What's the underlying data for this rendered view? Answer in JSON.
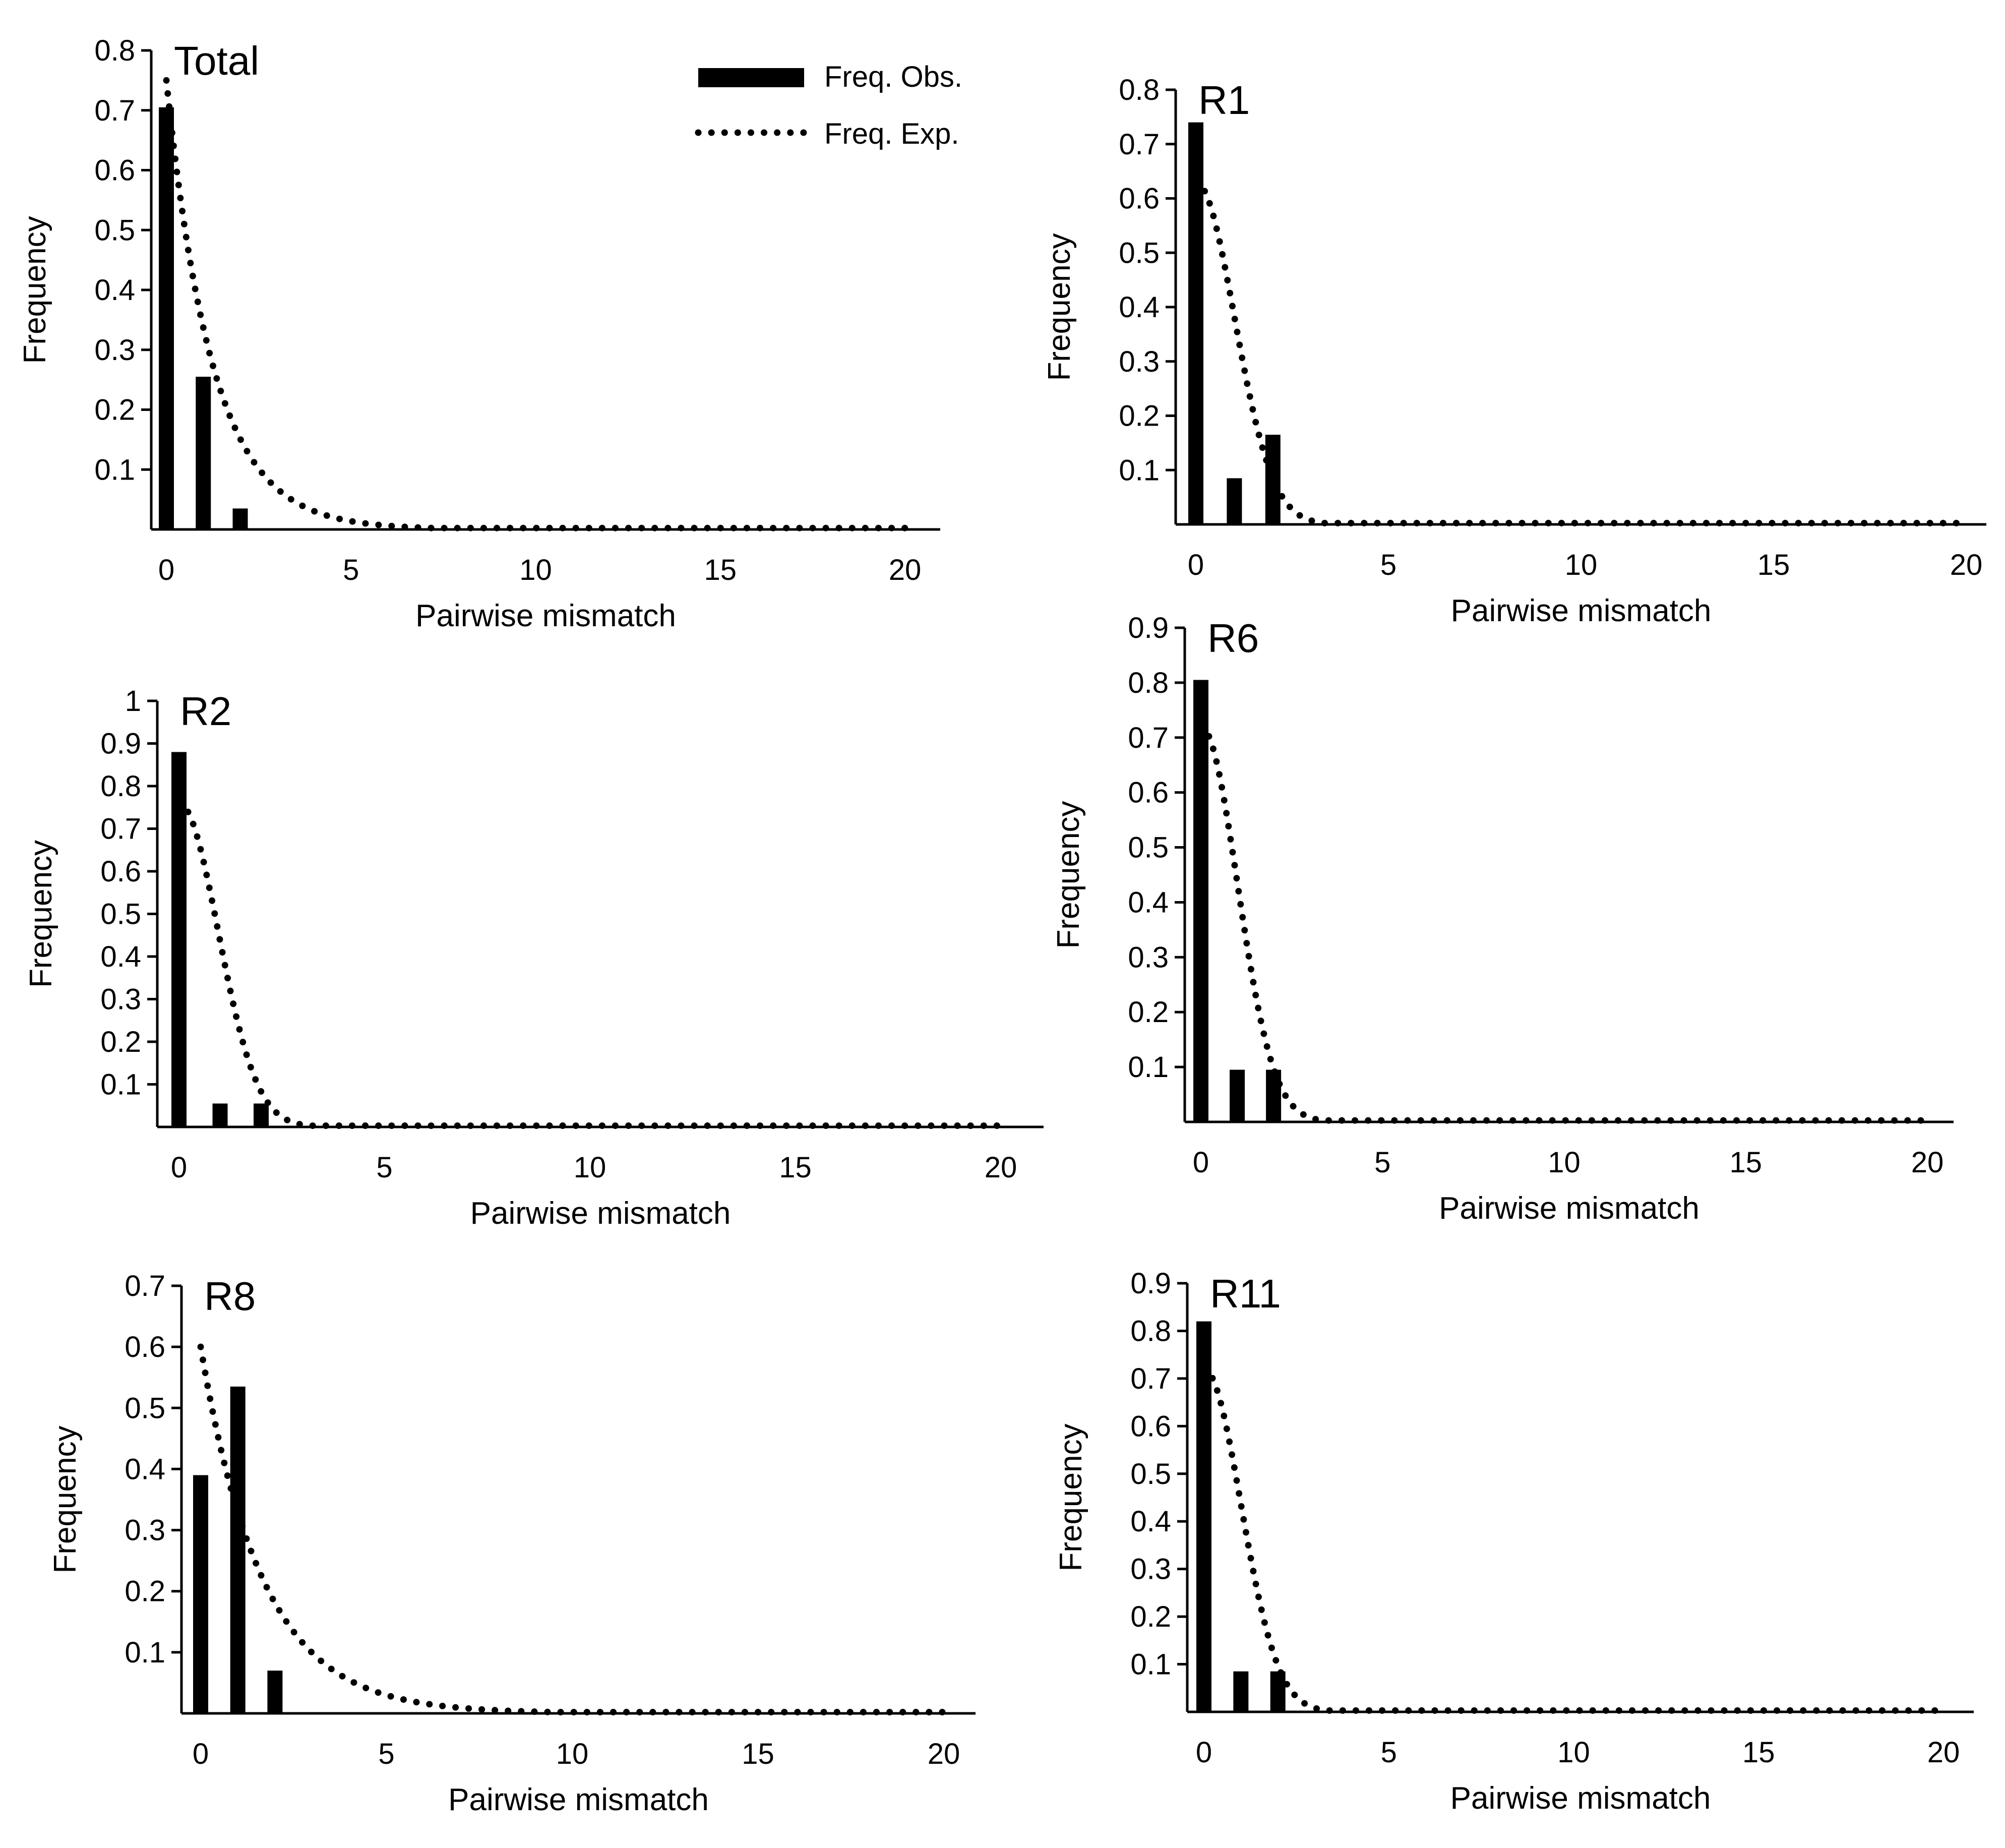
{
  "legend": {
    "observed_label": "Freq. Obs.",
    "expected_label": "Freq. Exp."
  },
  "colors": {
    "ink": "#000000",
    "background": "#ffffff"
  },
  "chart_data": [
    {
      "type": "bar",
      "title": "Total",
      "xlabel": "Pairwise mismatch",
      "ylabel": "Frequency",
      "xlim": [
        0,
        20
      ],
      "ylim": [
        0,
        0.8
      ],
      "xticks": [
        0,
        5,
        10,
        15,
        20
      ],
      "yticks": [
        0.1,
        0.2,
        0.3,
        0.4,
        0.5,
        0.6,
        0.7,
        0.8
      ],
      "ytick_labels": [
        "0.1",
        "0.2",
        "0.3",
        "0.4",
        "0.5",
        "0.6",
        "0.7",
        "0.8"
      ],
      "grid": false,
      "legend_position": "top-right",
      "series": [
        {
          "name": "Freq. Obs.",
          "type": "bar",
          "x": [
            0,
            1,
            2
          ],
          "values": [
            0.705,
            0.255,
            0.035
          ]
        },
        {
          "name": "Freq. Exp.",
          "type": "line",
          "style": "dotted",
          "shape": "exponential",
          "start": 0.75,
          "decay": 0.8
        }
      ]
    },
    {
      "type": "bar",
      "title": "R1",
      "xlabel": "Pairwise mismatch",
      "ylabel": "Frequency",
      "xlim": [
        0,
        20
      ],
      "ylim": [
        0,
        0.8
      ],
      "xticks": [
        0,
        5,
        10,
        15,
        20
      ],
      "yticks": [
        0.1,
        0.2,
        0.3,
        0.4,
        0.5,
        0.6,
        0.7,
        0.8
      ],
      "ytick_labels": [
        "0.1",
        "0.2",
        "0.3",
        "0.4",
        "0.5",
        "0.6",
        "0.7",
        "0.8"
      ],
      "grid": false,
      "series": [
        {
          "name": "Freq. Obs.",
          "type": "bar",
          "x": [
            0,
            1,
            2
          ],
          "values": [
            0.74,
            0.085,
            0.165
          ]
        },
        {
          "name": "Freq. Exp.",
          "type": "line",
          "style": "dotted",
          "shape": "gaussian",
          "start": 0.63,
          "width": 1.0
        }
      ]
    },
    {
      "type": "bar",
      "title": "R2",
      "xlabel": "Pairwise mismatch",
      "ylabel": "Frequency",
      "xlim": [
        0,
        20
      ],
      "ylim": [
        0,
        1.0
      ],
      "xticks": [
        0,
        5,
        10,
        15,
        20
      ],
      "yticks": [
        0.1,
        0.2,
        0.3,
        0.4,
        0.5,
        0.6,
        0.7,
        0.8,
        0.9,
        1.0
      ],
      "ytick_labels": [
        "0.1",
        "0.2",
        "0.3",
        "0.4",
        "0.5",
        "0.6",
        "0.7",
        "0.8",
        "0.9",
        "1"
      ],
      "grid": false,
      "series": [
        {
          "name": "Freq. Obs.",
          "type": "bar",
          "x": [
            0,
            1,
            2
          ],
          "values": [
            0.88,
            0.055,
            0.055
          ]
        },
        {
          "name": "Freq. Exp.",
          "type": "line",
          "style": "dotted",
          "shape": "gaussian",
          "start": 0.76,
          "width": 0.95
        }
      ]
    },
    {
      "type": "bar",
      "title": "R6",
      "xlabel": "Pairwise mismatch",
      "ylabel": "Frequency",
      "xlim": [
        0,
        20
      ],
      "ylim": [
        0,
        0.9
      ],
      "xticks": [
        0,
        5,
        10,
        15,
        20
      ],
      "yticks": [
        0.1,
        0.2,
        0.3,
        0.4,
        0.5,
        0.6,
        0.7,
        0.8,
        0.9
      ],
      "ytick_labels": [
        "0.1",
        "0.2",
        "0.3",
        "0.4",
        "0.5",
        "0.6",
        "0.7",
        "0.8",
        "0.9"
      ],
      "grid": false,
      "series": [
        {
          "name": "Freq. Obs.",
          "type": "bar",
          "x": [
            0,
            1,
            2
          ],
          "values": [
            0.805,
            0.095,
            0.095
          ]
        },
        {
          "name": "Freq. Exp.",
          "type": "line",
          "style": "dotted",
          "shape": "gaussian",
          "start": 0.72,
          "width": 1.0
        }
      ]
    },
    {
      "type": "bar",
      "title": "R8",
      "xlabel": "Pairwise mismatch",
      "ylabel": "Frequency",
      "xlim": [
        0,
        20
      ],
      "ylim": [
        0,
        0.7
      ],
      "xticks": [
        0,
        5,
        10,
        15,
        20
      ],
      "yticks": [
        0.1,
        0.2,
        0.3,
        0.4,
        0.5,
        0.6,
        0.7
      ],
      "ytick_labels": [
        "0.1",
        "0.2",
        "0.3",
        "0.4",
        "0.5",
        "0.6",
        "0.7"
      ],
      "grid": false,
      "series": [
        {
          "name": "Freq. Obs.",
          "type": "bar",
          "x": [
            0,
            1,
            2
          ],
          "values": [
            0.39,
            0.535,
            0.07
          ]
        },
        {
          "name": "Freq. Exp.",
          "type": "line",
          "style": "dotted",
          "shape": "exponential",
          "start": 0.6,
          "decay": 0.6
        }
      ]
    },
    {
      "type": "bar",
      "title": "R11",
      "xlabel": "Pairwise mismatch",
      "ylabel": "Frequency",
      "xlim": [
        0,
        20
      ],
      "ylim": [
        0,
        0.9
      ],
      "xticks": [
        0,
        5,
        10,
        15,
        20
      ],
      "yticks": [
        0.1,
        0.2,
        0.3,
        0.4,
        0.5,
        0.6,
        0.7,
        0.8,
        0.9
      ],
      "ytick_labels": [
        "0.1",
        "0.2",
        "0.3",
        "0.4",
        "0.5",
        "0.6",
        "0.7",
        "0.8",
        "0.9"
      ],
      "grid": false,
      "series": [
        {
          "name": "Freq. Obs.",
          "type": "bar",
          "x": [
            0,
            1,
            2
          ],
          "values": [
            0.82,
            0.085,
            0.085
          ]
        },
        {
          "name": "Freq. Exp.",
          "type": "line",
          "style": "dotted",
          "shape": "gaussian",
          "start": 0.72,
          "width": 1.0
        }
      ]
    }
  ]
}
